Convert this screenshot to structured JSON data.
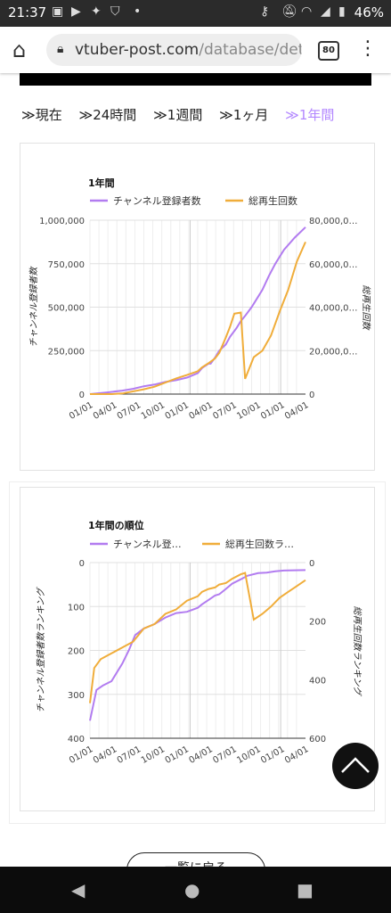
{
  "status": {
    "time": "21:37",
    "left_icons": [
      "line-icon",
      "youtube-icon",
      "twitter-icon",
      "shield-icon",
      "dot-icon"
    ],
    "right_icons": [
      "key-icon",
      "mute-icon",
      "wifi-icon",
      "signal-icon",
      "battery-icon"
    ],
    "battery": "46%"
  },
  "browser": {
    "url_main": "vtuber-post.com",
    "url_rest": "/database/deta",
    "tab_count": "80"
  },
  "periods": {
    "items": [
      "≫現在",
      "≫24時間",
      "≫1週間",
      "≫1ヶ月",
      "≫1年間"
    ],
    "active_index": 4
  },
  "chart_data": [
    {
      "type": "line",
      "title": "1年間",
      "x_ticks": [
        "01/01",
        "04/01",
        "07/01",
        "10/01",
        "01/01",
        "04/01",
        "07/01",
        "10/01",
        "01/01",
        "04/01"
      ],
      "ylabel_left": "チャンネル登録者数",
      "ylabel_right": "総再生回数",
      "y_left_ticks": [
        "1,000,000",
        "750,000",
        "500,000",
        "250,000",
        "0"
      ],
      "y_right_ticks": [
        "80,000,0…",
        "60,000,0…",
        "40,000,0…",
        "20,000,0…",
        "0"
      ],
      "ylim_left": [
        0,
        1000000
      ],
      "ylim_right": [
        0,
        80000000
      ],
      "legend_position": "top",
      "series": [
        {
          "name": "チャンネル登録者数",
          "axis": "left",
          "color": "#b27cf0",
          "x": [
            0,
            0.08,
            0.15,
            0.2,
            0.25,
            0.3,
            0.35,
            0.4,
            0.45,
            0.5,
            0.52,
            0.55,
            0.56,
            0.58,
            0.6,
            0.63,
            0.65,
            0.68,
            0.7,
            0.72,
            0.75,
            0.78,
            0.8,
            0.83,
            0.86,
            0.9,
            0.95,
            1.0
          ],
          "values": [
            0,
            10000,
            20000,
            30000,
            45000,
            55000,
            70000,
            80000,
            95000,
            120000,
            150000,
            175000,
            175000,
            210000,
            250000,
            285000,
            330000,
            380000,
            420000,
            450000,
            500000,
            560000,
            600000,
            680000,
            750000,
            830000,
            900000,
            960000
          ]
        },
        {
          "name": "総再生回数",
          "axis": "right",
          "color": "#f0ad3a",
          "x": [
            0,
            0.1,
            0.15,
            0.25,
            0.3,
            0.35,
            0.4,
            0.45,
            0.5,
            0.52,
            0.55,
            0.58,
            0.6,
            0.63,
            0.65,
            0.67,
            0.7,
            0.72,
            0.76,
            0.8,
            0.84,
            0.88,
            0.92,
            0.96,
            1.0
          ],
          "values": [
            0,
            0,
            300000,
            2200000,
            3400000,
            5300000,
            7200000,
            8800000,
            10500000,
            12300000,
            14200000,
            16400000,
            19000000,
            26000000,
            31000000,
            37000000,
            37500000,
            7000000,
            17000000,
            20000000,
            27000000,
            38000000,
            48000000,
            61000000,
            70000000
          ]
        }
      ]
    },
    {
      "type": "line",
      "title": "1年間の順位",
      "x_ticks": [
        "01/01",
        "04/01",
        "07/01",
        "10/01",
        "01/01",
        "04/01",
        "07/01",
        "10/01",
        "01/01",
        "04/01"
      ],
      "ylabel_left": "チャンネル登録者数ランキング",
      "ylabel_right": "総再生回数ランキング",
      "y_left_ticks": [
        "0",
        "100",
        "200",
        "300",
        "400"
      ],
      "y_right_ticks": [
        "0",
        "200",
        "400",
        "600"
      ],
      "ylim_left": [
        400,
        0
      ],
      "ylim_right": [
        600,
        0
      ],
      "legend_position": "top",
      "series": [
        {
          "name": "チャンネル登…",
          "axis": "left",
          "color": "#b27cf0",
          "x": [
            0,
            0.03,
            0.06,
            0.1,
            0.15,
            0.18,
            0.21,
            0.25,
            0.3,
            0.35,
            0.4,
            0.45,
            0.5,
            0.52,
            0.55,
            0.58,
            0.6,
            0.63,
            0.66,
            0.7,
            0.73,
            0.78,
            0.82,
            0.86,
            0.9,
            1.0
          ],
          "values": [
            360,
            290,
            280,
            270,
            230,
            200,
            165,
            150,
            140,
            125,
            115,
            112,
            103,
            95,
            85,
            75,
            72,
            60,
            48,
            38,
            30,
            24,
            23,
            20,
            18,
            17
          ]
        },
        {
          "name": "総再生回数ラ…",
          "axis": "right",
          "color": "#f0ad3a",
          "x": [
            0,
            0.02,
            0.05,
            0.1,
            0.15,
            0.2,
            0.25,
            0.3,
            0.35,
            0.4,
            0.45,
            0.5,
            0.52,
            0.55,
            0.58,
            0.6,
            0.63,
            0.66,
            0.7,
            0.72,
            0.76,
            0.8,
            0.84,
            0.88,
            0.92,
            0.96,
            1.0
          ],
          "values": [
            480,
            360,
            330,
            310,
            290,
            270,
            225,
            210,
            175,
            160,
            130,
            115,
            100,
            90,
            85,
            75,
            70,
            55,
            40,
            35,
            195,
            175,
            150,
            120,
            100,
            80,
            60
          ]
        }
      ]
    }
  ],
  "back_button": "一覧に戻る"
}
